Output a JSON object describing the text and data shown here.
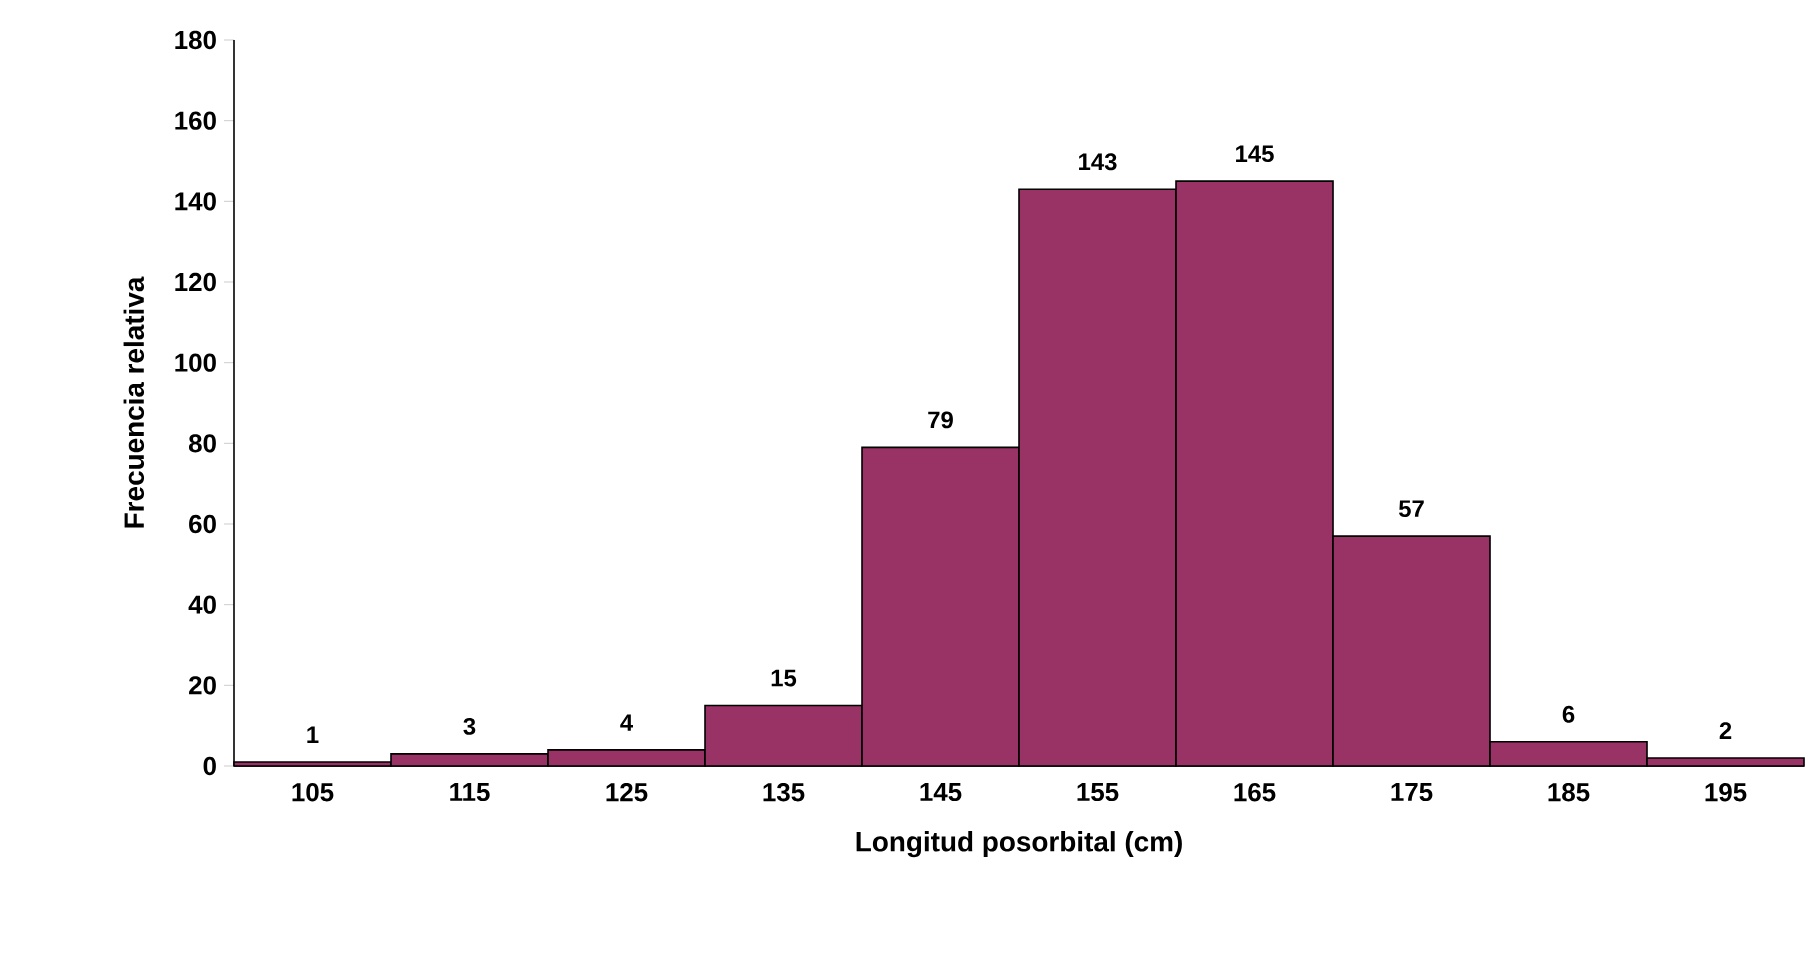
{
  "chart_data": {
    "type": "histogram",
    "xlabel": "Longitud posorbital (cm)",
    "ylabel": "Frecuencia relativa",
    "bins": [
      100,
      110,
      120,
      130,
      140,
      150,
      160,
      170,
      180,
      190,
      200
    ],
    "values": [
      1,
      3,
      4,
      15,
      79,
      143,
      145,
      57,
      6,
      2
    ],
    "color": "#993366",
    "xlim": [
      100,
      200
    ],
    "xticks": [
      105,
      115,
      125,
      135,
      145,
      155,
      165,
      175,
      185,
      195
    ],
    "ylim": [
      0,
      180
    ],
    "yticks": [
      0,
      20,
      40,
      60,
      80,
      100,
      120,
      140,
      160,
      180
    ],
    "data_labels": true
  }
}
